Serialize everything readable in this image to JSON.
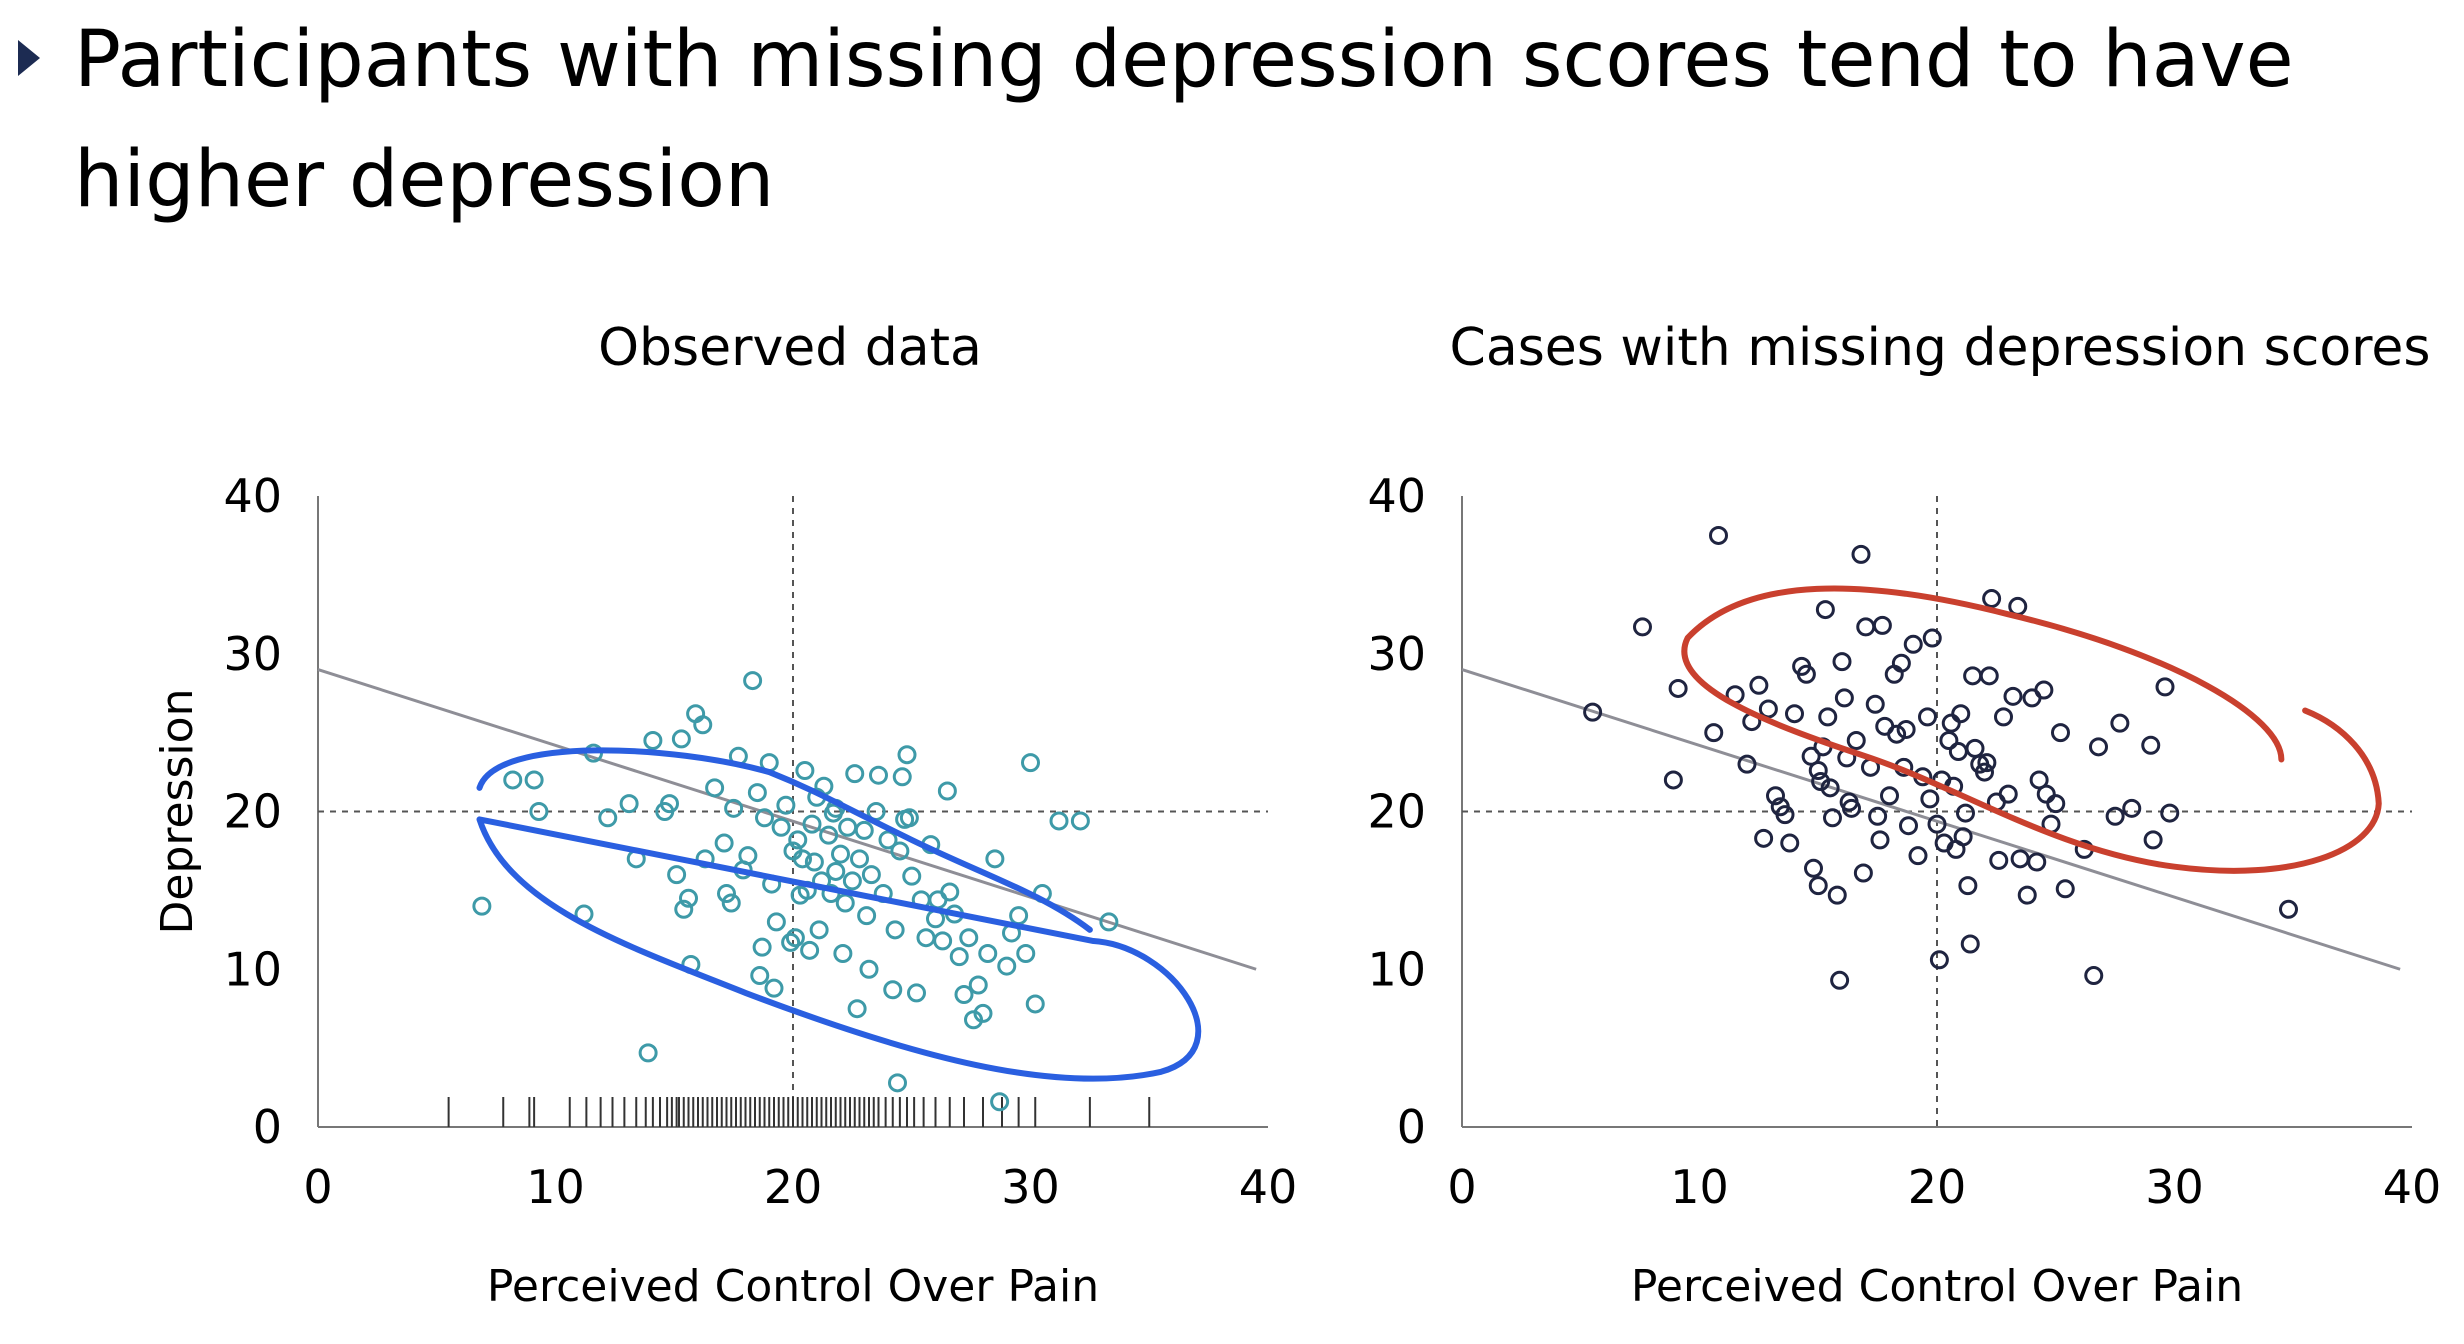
{
  "slide": {
    "title": "Participants with missing depression scores tend to have higher depression",
    "bullet_icon": "triangle-right-icon"
  },
  "colors": {
    "observed_points": "#3e9aa8",
    "missing_points": "#1f2440",
    "observed_annotation": "#2a5fe0",
    "missing_annotation": "#c9402e",
    "regression_line": "#8e8e96",
    "reference_lines": "#555555"
  },
  "chart_data": [
    {
      "type": "scatter",
      "title": "Observed data",
      "xlabel": "Perceived Control Over Pain",
      "ylabel": "Depression",
      "xlim": [
        0,
        40
      ],
      "ylim": [
        0,
        40
      ],
      "xticks": [
        0,
        10,
        20,
        30,
        40
      ],
      "yticks": [
        0,
        10,
        20,
        30,
        40
      ],
      "reference_lines": {
        "x": 20,
        "y": 20
      },
      "regression_line": [
        [
          0,
          29
        ],
        [
          39.5,
          10
        ]
      ],
      "rug_x": [
        5.5,
        7.8,
        8.9,
        9.1,
        10.6,
        11.3,
        11.9,
        12.4,
        12.9,
        13.4,
        13.8,
        14.1,
        14.4,
        14.7,
        14.9,
        15.1,
        15.2,
        15.4,
        15.6,
        15.8,
        16.0,
        16.2,
        16.4,
        16.6,
        16.8,
        17.0,
        17.2,
        17.4,
        17.6,
        17.8,
        18.0,
        18.2,
        18.4,
        18.6,
        18.8,
        19.0,
        19.2,
        19.4,
        19.6,
        19.8,
        20.0,
        20.2,
        20.4,
        20.6,
        20.8,
        21.0,
        21.2,
        21.4,
        21.6,
        21.8,
        22.0,
        22.2,
        22.4,
        22.6,
        22.8,
        23.0,
        23.2,
        23.4,
        23.6,
        23.9,
        24.2,
        24.5,
        24.8,
        25.1,
        25.5,
        26.0,
        26.6,
        27.2,
        28.0,
        28.8,
        29.5,
        30.2,
        32.5,
        35.0
      ],
      "points": [
        [
          6.9,
          14.0
        ],
        [
          8.2,
          22.0
        ],
        [
          9.1,
          22.0
        ],
        [
          9.3,
          20.0
        ],
        [
          11.2,
          13.5
        ],
        [
          11.6,
          23.7
        ],
        [
          12.2,
          19.6
        ],
        [
          13.1,
          20.5
        ],
        [
          13.4,
          17.0
        ],
        [
          14.1,
          24.5
        ],
        [
          14.6,
          20.0
        ],
        [
          14.8,
          20.5
        ],
        [
          15.1,
          16.0
        ],
        [
          15.3,
          24.6
        ],
        [
          15.4,
          13.8
        ],
        [
          15.6,
          14.5
        ],
        [
          15.7,
          10.3
        ],
        [
          15.9,
          26.2
        ],
        [
          16.2,
          25.5
        ],
        [
          16.3,
          17.0
        ],
        [
          16.7,
          21.5
        ],
        [
          17.1,
          18.0
        ],
        [
          17.2,
          14.8
        ],
        [
          17.4,
          14.2
        ],
        [
          17.5,
          20.2
        ],
        [
          17.7,
          23.5
        ],
        [
          17.9,
          16.3
        ],
        [
          18.1,
          17.2
        ],
        [
          18.3,
          28.3
        ],
        [
          18.5,
          21.2
        ],
        [
          18.6,
          9.6
        ],
        [
          18.7,
          11.4
        ],
        [
          18.8,
          19.6
        ],
        [
          19.0,
          23.1
        ],
        [
          19.1,
          15.4
        ],
        [
          19.2,
          8.8
        ],
        [
          19.3,
          13.0
        ],
        [
          19.5,
          19.0
        ],
        [
          19.7,
          20.4
        ],
        [
          19.9,
          11.7
        ],
        [
          20.0,
          17.5
        ],
        [
          20.1,
          12.0
        ],
        [
          20.2,
          18.2
        ],
        [
          20.3,
          14.7
        ],
        [
          20.4,
          17.0
        ],
        [
          20.5,
          22.6
        ],
        [
          20.6,
          15.0
        ],
        [
          20.7,
          11.2
        ],
        [
          20.8,
          19.2
        ],
        [
          20.9,
          16.8
        ],
        [
          21.0,
          20.9
        ],
        [
          21.1,
          12.5
        ],
        [
          21.2,
          15.6
        ],
        [
          21.3,
          21.6
        ],
        [
          21.5,
          18.5
        ],
        [
          21.6,
          14.8
        ],
        [
          21.7,
          19.9
        ],
        [
          21.8,
          16.2
        ],
        [
          22.0,
          17.3
        ],
        [
          22.1,
          11.0
        ],
        [
          22.2,
          14.2
        ],
        [
          22.3,
          19.0
        ],
        [
          22.5,
          15.6
        ],
        [
          22.6,
          22.4
        ],
        [
          22.7,
          7.5
        ],
        [
          22.8,
          17.0
        ],
        [
          23.0,
          18.8
        ],
        [
          23.1,
          13.4
        ],
        [
          23.2,
          10.0
        ],
        [
          23.3,
          16.0
        ],
        [
          23.5,
          20.0
        ],
        [
          23.6,
          22.3
        ],
        [
          23.8,
          14.8
        ],
        [
          24.0,
          18.2
        ],
        [
          24.2,
          8.7
        ],
        [
          24.3,
          12.5
        ],
        [
          24.4,
          2.8
        ],
        [
          24.5,
          17.5
        ],
        [
          24.6,
          22.2
        ],
        [
          24.7,
          19.5
        ],
        [
          24.8,
          23.6
        ],
        [
          25.0,
          15.9
        ],
        [
          25.2,
          8.5
        ],
        [
          25.4,
          14.4
        ],
        [
          25.6,
          12.0
        ],
        [
          25.8,
          17.9
        ],
        [
          26.0,
          13.2
        ],
        [
          26.1,
          14.4
        ],
        [
          26.3,
          11.8
        ],
        [
          26.5,
          21.3
        ],
        [
          26.6,
          14.9
        ],
        [
          26.8,
          13.5
        ],
        [
          27.0,
          10.8
        ],
        [
          27.2,
          8.4
        ],
        [
          27.4,
          12.0
        ],
        [
          27.6,
          6.8
        ],
        [
          27.8,
          9.0
        ],
        [
          28.0,
          7.2
        ],
        [
          28.2,
          11.0
        ],
        [
          28.5,
          17.0
        ],
        [
          28.7,
          1.6
        ],
        [
          29.0,
          10.2
        ],
        [
          29.2,
          12.3
        ],
        [
          29.5,
          13.4
        ],
        [
          29.8,
          11.0
        ],
        [
          30.0,
          23.1
        ],
        [
          30.2,
          7.8
        ],
        [
          30.5,
          14.8
        ],
        [
          31.2,
          19.4
        ],
        [
          32.1,
          19.4
        ],
        [
          33.3,
          13.0
        ],
        [
          13.9,
          4.7
        ],
        [
          24.9,
          19.6
        ],
        [
          21.8,
          20.2
        ]
      ],
      "annotation": "hand-drawn ellipse"
    },
    {
      "type": "scatter",
      "title": "Cases with missing depression scores",
      "xlabel": "Perceived Control Over Pain",
      "ylabel": "",
      "xlim": [
        0,
        40
      ],
      "ylim": [
        0,
        40
      ],
      "xticks": [
        0,
        10,
        20,
        30,
        40
      ],
      "yticks": [
        0,
        10,
        20,
        30,
        40
      ],
      "reference_lines": {
        "x": 20,
        "y": 20
      },
      "regression_line": [
        [
          0,
          29
        ],
        [
          39.5,
          10
        ]
      ],
      "points": [
        [
          5.5,
          26.3
        ],
        [
          7.6,
          31.7
        ],
        [
          8.9,
          22.0
        ],
        [
          9.1,
          27.8
        ],
        [
          10.6,
          25.0
        ],
        [
          10.8,
          37.5
        ],
        [
          11.5,
          27.4
        ],
        [
          12.0,
          23.0
        ],
        [
          12.2,
          25.7
        ],
        [
          12.5,
          28.0
        ],
        [
          12.7,
          18.3
        ],
        [
          12.9,
          26.5
        ],
        [
          13.2,
          21.0
        ],
        [
          13.4,
          20.3
        ],
        [
          13.6,
          19.8
        ],
        [
          13.8,
          18.0
        ],
        [
          14.0,
          26.2
        ],
        [
          14.3,
          29.2
        ],
        [
          14.5,
          28.7
        ],
        [
          14.7,
          23.5
        ],
        [
          14.8,
          16.4
        ],
        [
          15.0,
          15.3
        ],
        [
          15.1,
          21.9
        ],
        [
          15.2,
          24.1
        ],
        [
          15.3,
          32.8
        ],
        [
          15.4,
          26.0
        ],
        [
          15.5,
          21.5
        ],
        [
          15.6,
          19.6
        ],
        [
          15.8,
          14.7
        ],
        [
          15.9,
          9.3
        ],
        [
          16.0,
          29.5
        ],
        [
          16.1,
          27.2
        ],
        [
          16.2,
          23.4
        ],
        [
          16.4,
          20.2
        ],
        [
          16.6,
          24.5
        ],
        [
          16.8,
          36.3
        ],
        [
          16.9,
          16.1
        ],
        [
          17.0,
          31.7
        ],
        [
          17.2,
          22.8
        ],
        [
          17.4,
          26.8
        ],
        [
          17.5,
          19.7
        ],
        [
          17.7,
          31.8
        ],
        [
          17.8,
          25.4
        ],
        [
          18.0,
          21.0
        ],
        [
          18.2,
          28.7
        ],
        [
          18.3,
          24.9
        ],
        [
          18.5,
          29.4
        ],
        [
          18.7,
          25.2
        ],
        [
          18.8,
          19.1
        ],
        [
          19.0,
          30.6
        ],
        [
          19.2,
          17.2
        ],
        [
          19.4,
          22.2
        ],
        [
          19.6,
          26.0
        ],
        [
          19.8,
          31.0
        ],
        [
          20.0,
          19.2
        ],
        [
          20.1,
          10.6
        ],
        [
          20.2,
          22.0
        ],
        [
          20.3,
          18.0
        ],
        [
          20.5,
          24.5
        ],
        [
          20.6,
          25.6
        ],
        [
          20.7,
          21.6
        ],
        [
          20.8,
          17.6
        ],
        [
          21.0,
          26.2
        ],
        [
          21.2,
          19.9
        ],
        [
          21.3,
          15.3
        ],
        [
          21.4,
          11.6
        ],
        [
          21.5,
          28.6
        ],
        [
          21.6,
          24.0
        ],
        [
          21.8,
          23.0
        ],
        [
          22.0,
          22.5
        ],
        [
          22.2,
          28.6
        ],
        [
          22.3,
          33.5
        ],
        [
          22.5,
          20.6
        ],
        [
          22.6,
          16.9
        ],
        [
          22.8,
          26.0
        ],
        [
          23.0,
          21.1
        ],
        [
          23.2,
          27.3
        ],
        [
          23.4,
          33.0
        ],
        [
          23.5,
          17.0
        ],
        [
          23.8,
          14.7
        ],
        [
          24.0,
          27.2
        ],
        [
          24.2,
          16.8
        ],
        [
          24.3,
          22.0
        ],
        [
          24.5,
          27.7
        ],
        [
          24.6,
          21.1
        ],
        [
          24.8,
          19.2
        ],
        [
          25.0,
          20.5
        ],
        [
          25.2,
          25.0
        ],
        [
          25.4,
          15.1
        ],
        [
          26.2,
          17.6
        ],
        [
          26.6,
          9.6
        ],
        [
          26.8,
          24.1
        ],
        [
          27.5,
          19.7
        ],
        [
          27.7,
          25.6
        ],
        [
          28.2,
          20.2
        ],
        [
          29.0,
          24.2
        ],
        [
          29.1,
          18.2
        ],
        [
          29.6,
          27.9
        ],
        [
          29.8,
          19.9
        ],
        [
          34.8,
          13.8
        ],
        [
          16.3,
          20.6
        ],
        [
          15.0,
          22.6
        ],
        [
          18.6,
          22.8
        ],
        [
          19.7,
          20.8
        ],
        [
          22.1,
          23.1
        ],
        [
          21.1,
          18.4
        ],
        [
          17.6,
          18.2
        ],
        [
          20.9,
          23.8
        ]
      ],
      "annotation": "hand-drawn ellipse"
    }
  ]
}
